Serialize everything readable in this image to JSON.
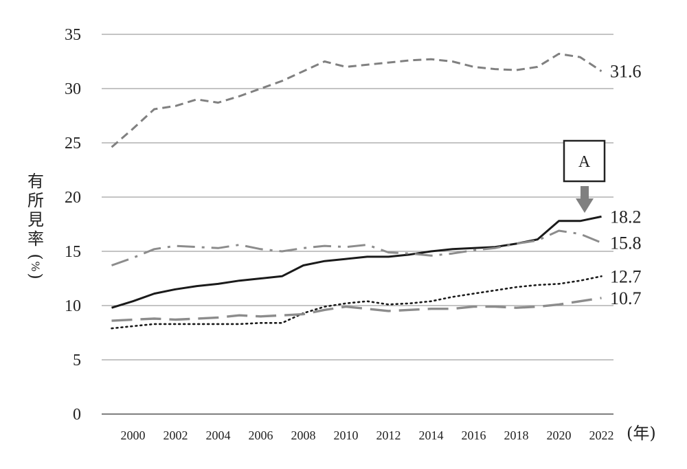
{
  "chart_data": {
    "type": "line",
    "ylabel": "有所見率(%)",
    "xunit": "(年)",
    "ylim": [
      0,
      35
    ],
    "yticks": [
      "0",
      "5",
      "10",
      "15",
      "20",
      "25",
      "30",
      "35"
    ],
    "xticks": [
      "2000",
      "2002",
      "2004",
      "2006",
      "2008",
      "2010",
      "2012",
      "2014",
      "2016",
      "2018",
      "2020",
      "2022"
    ],
    "grid": "horizontal",
    "x": [
      1999,
      2000,
      2001,
      2002,
      2003,
      2004,
      2005,
      2006,
      2007,
      2008,
      2009,
      2010,
      2011,
      2012,
      2013,
      2014,
      2015,
      2016,
      2017,
      2018,
      2019,
      2020,
      2021,
      2022
    ],
    "series": [
      {
        "end_label": "31.6",
        "style": "dashed",
        "color": "#808080",
        "values": [
          24.6,
          26.3,
          28.1,
          28.4,
          29.0,
          28.7,
          29.3,
          30.0,
          30.7,
          31.6,
          32.5,
          32.0,
          32.2,
          32.4,
          32.6,
          32.7,
          32.5,
          32.0,
          31.8,
          31.7,
          32.0,
          33.2,
          32.9,
          31.6
        ]
      },
      {
        "end_label": "18.2",
        "style": "solid",
        "color": "#1a1a1a",
        "values": [
          9.8,
          10.4,
          11.1,
          11.5,
          11.8,
          12.0,
          12.3,
          12.5,
          12.7,
          13.7,
          14.1,
          14.3,
          14.5,
          14.5,
          14.7,
          15.0,
          15.2,
          15.3,
          15.4,
          15.7,
          16.1,
          17.8,
          17.8,
          18.2
        ]
      },
      {
        "end_label": "15.8",
        "style": "dash-dot",
        "color": "#8c8c8c",
        "values": [
          13.7,
          14.4,
          15.2,
          15.5,
          15.4,
          15.3,
          15.6,
          15.2,
          15.0,
          15.3,
          15.5,
          15.4,
          15.6,
          14.9,
          14.8,
          14.6,
          14.8,
          15.1,
          15.3,
          15.7,
          16.0,
          16.9,
          16.6,
          15.8
        ]
      },
      {
        "end_label": "12.7",
        "style": "dotted",
        "color": "#1a1a1a",
        "values": [
          7.9,
          8.1,
          8.3,
          8.3,
          8.3,
          8.3,
          8.3,
          8.4,
          8.4,
          9.3,
          9.9,
          10.2,
          10.4,
          10.1,
          10.2,
          10.4,
          10.8,
          11.1,
          11.4,
          11.7,
          11.9,
          12.0,
          12.3,
          12.7
        ]
      },
      {
        "end_label": "10.7",
        "style": "long-dash",
        "color": "#8c8c8c",
        "values": [
          8.6,
          8.7,
          8.8,
          8.7,
          8.8,
          8.9,
          9.1,
          9.0,
          9.1,
          9.2,
          9.6,
          9.9,
          9.7,
          9.5,
          9.6,
          9.7,
          9.7,
          9.9,
          9.9,
          9.8,
          9.9,
          10.1,
          10.4,
          10.7
        ]
      }
    ],
    "annotation": {
      "label": "A",
      "points_to_year": 2021,
      "points_to_value": 17.8
    }
  }
}
